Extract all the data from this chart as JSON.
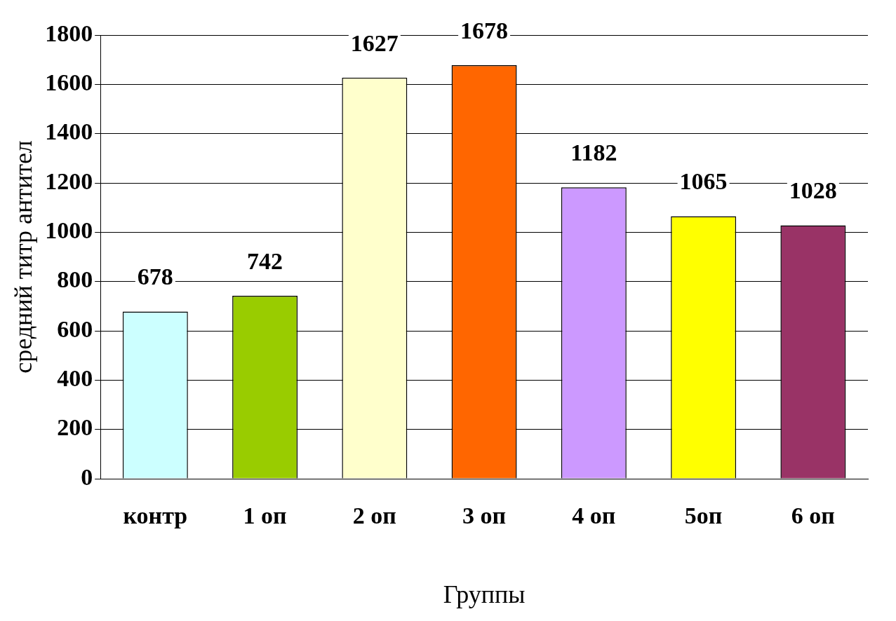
{
  "chart_data": {
    "type": "bar",
    "xlabel": "Группы",
    "ylabel": "средний титр антител",
    "categories": [
      "контр",
      "1 оп",
      "2 оп",
      "3 оп",
      "4 оп",
      "5оп",
      "6 оп"
    ],
    "values": [
      678,
      742,
      1627,
      1678,
      1182,
      1065,
      1028
    ],
    "colors": [
      "#ccffff",
      "#99cc00",
      "#ffffcc",
      "#ff6600",
      "#cc99ff",
      "#ffff00",
      "#993366"
    ],
    "ylim": [
      0,
      1800
    ],
    "yticks": [
      0,
      200,
      400,
      600,
      800,
      1000,
      1200,
      1400,
      1600,
      1800
    ],
    "grid": "y",
    "legend": false,
    "data_labels": true
  }
}
